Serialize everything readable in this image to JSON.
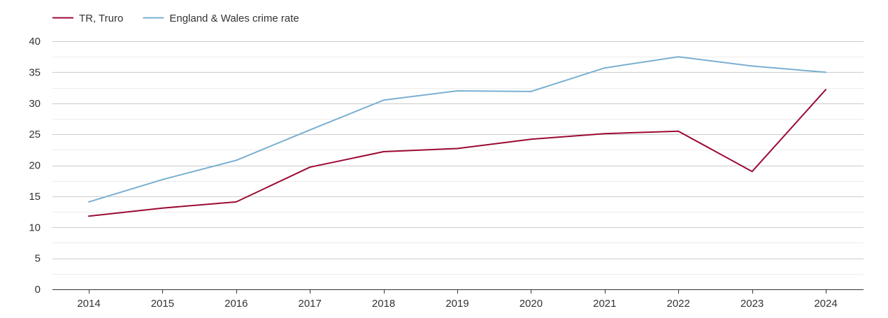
{
  "chart_data": {
    "type": "line",
    "title": "",
    "xlabel": "",
    "ylabel": "",
    "categories": [
      "2014",
      "2015",
      "2016",
      "2017",
      "2018",
      "2019",
      "2020",
      "2021",
      "2022",
      "2023",
      "2024"
    ],
    "ylim": [
      0,
      40
    ],
    "y_ticks": [
      0,
      5,
      10,
      15,
      20,
      25,
      30,
      35,
      40
    ],
    "y_tick_labels": [
      "0",
      "5",
      "10",
      "15",
      "20",
      "25",
      "30",
      "35",
      "40"
    ],
    "grid": true,
    "legend_position": "top-left",
    "series": [
      {
        "name": "TR, Truro",
        "color": "#9b0a33",
        "values": [
          11.8,
          13.1,
          14.1,
          19.7,
          22.2,
          22.7,
          24.2,
          25.1,
          25.5,
          19.0,
          32.2
        ]
      },
      {
        "name": "England & Wales crime rate",
        "color": "#7aafd1",
        "values": [
          14.1,
          17.7,
          20.8,
          25.7,
          30.5,
          32.0,
          31.9,
          35.7,
          37.5,
          36.0,
          35.0
        ]
      }
    ]
  }
}
